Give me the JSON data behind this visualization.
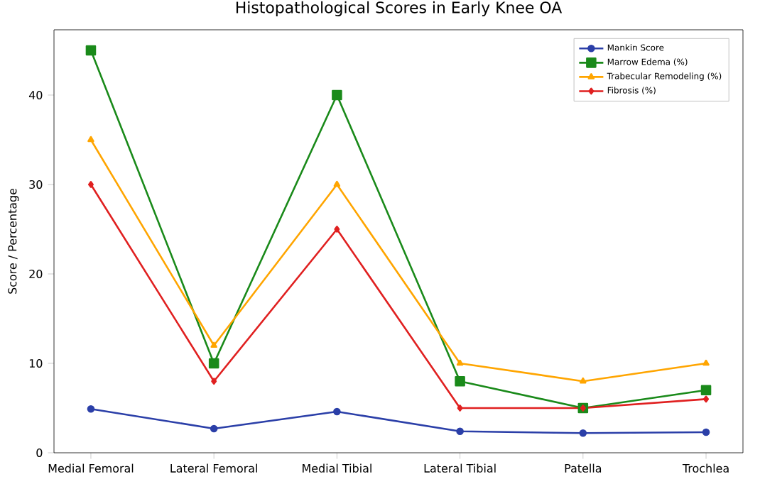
{
  "chart_data": {
    "type": "line",
    "title": "Histopathological Scores in Early Knee OA",
    "ylabel": "Score / Percentage",
    "categories": [
      "Medial Femoral",
      "Lateral Femoral",
      "Medial Tibial",
      "Lateral Tibial",
      "Patella",
      "Trochlea"
    ],
    "series": [
      {
        "name": "Mankin Score",
        "color": "#2b3fa8",
        "marker": "circle",
        "values": [
          4.9,
          2.7,
          4.6,
          2.4,
          2.2,
          2.3
        ]
      },
      {
        "name": "Marrow Edema (%)",
        "color": "#1a8a1a",
        "marker": "square",
        "values": [
          45,
          10,
          40,
          8,
          5,
          7
        ]
      },
      {
        "name": "Trabecular Remodeling (%)",
        "color": "#ffa500",
        "marker": "triangle",
        "values": [
          35,
          12,
          30,
          10,
          8,
          10
        ]
      },
      {
        "name": "Fibrosis (%)",
        "color": "#e02020",
        "marker": "diamond",
        "values": [
          30,
          8,
          25,
          5,
          5,
          6
        ]
      }
    ],
    "ylim": [
      0,
      47.3
    ],
    "yticks": [
      0,
      10,
      20,
      30,
      40
    ],
    "grid": false,
    "legend": "top right",
    "line_style": "solid"
  }
}
